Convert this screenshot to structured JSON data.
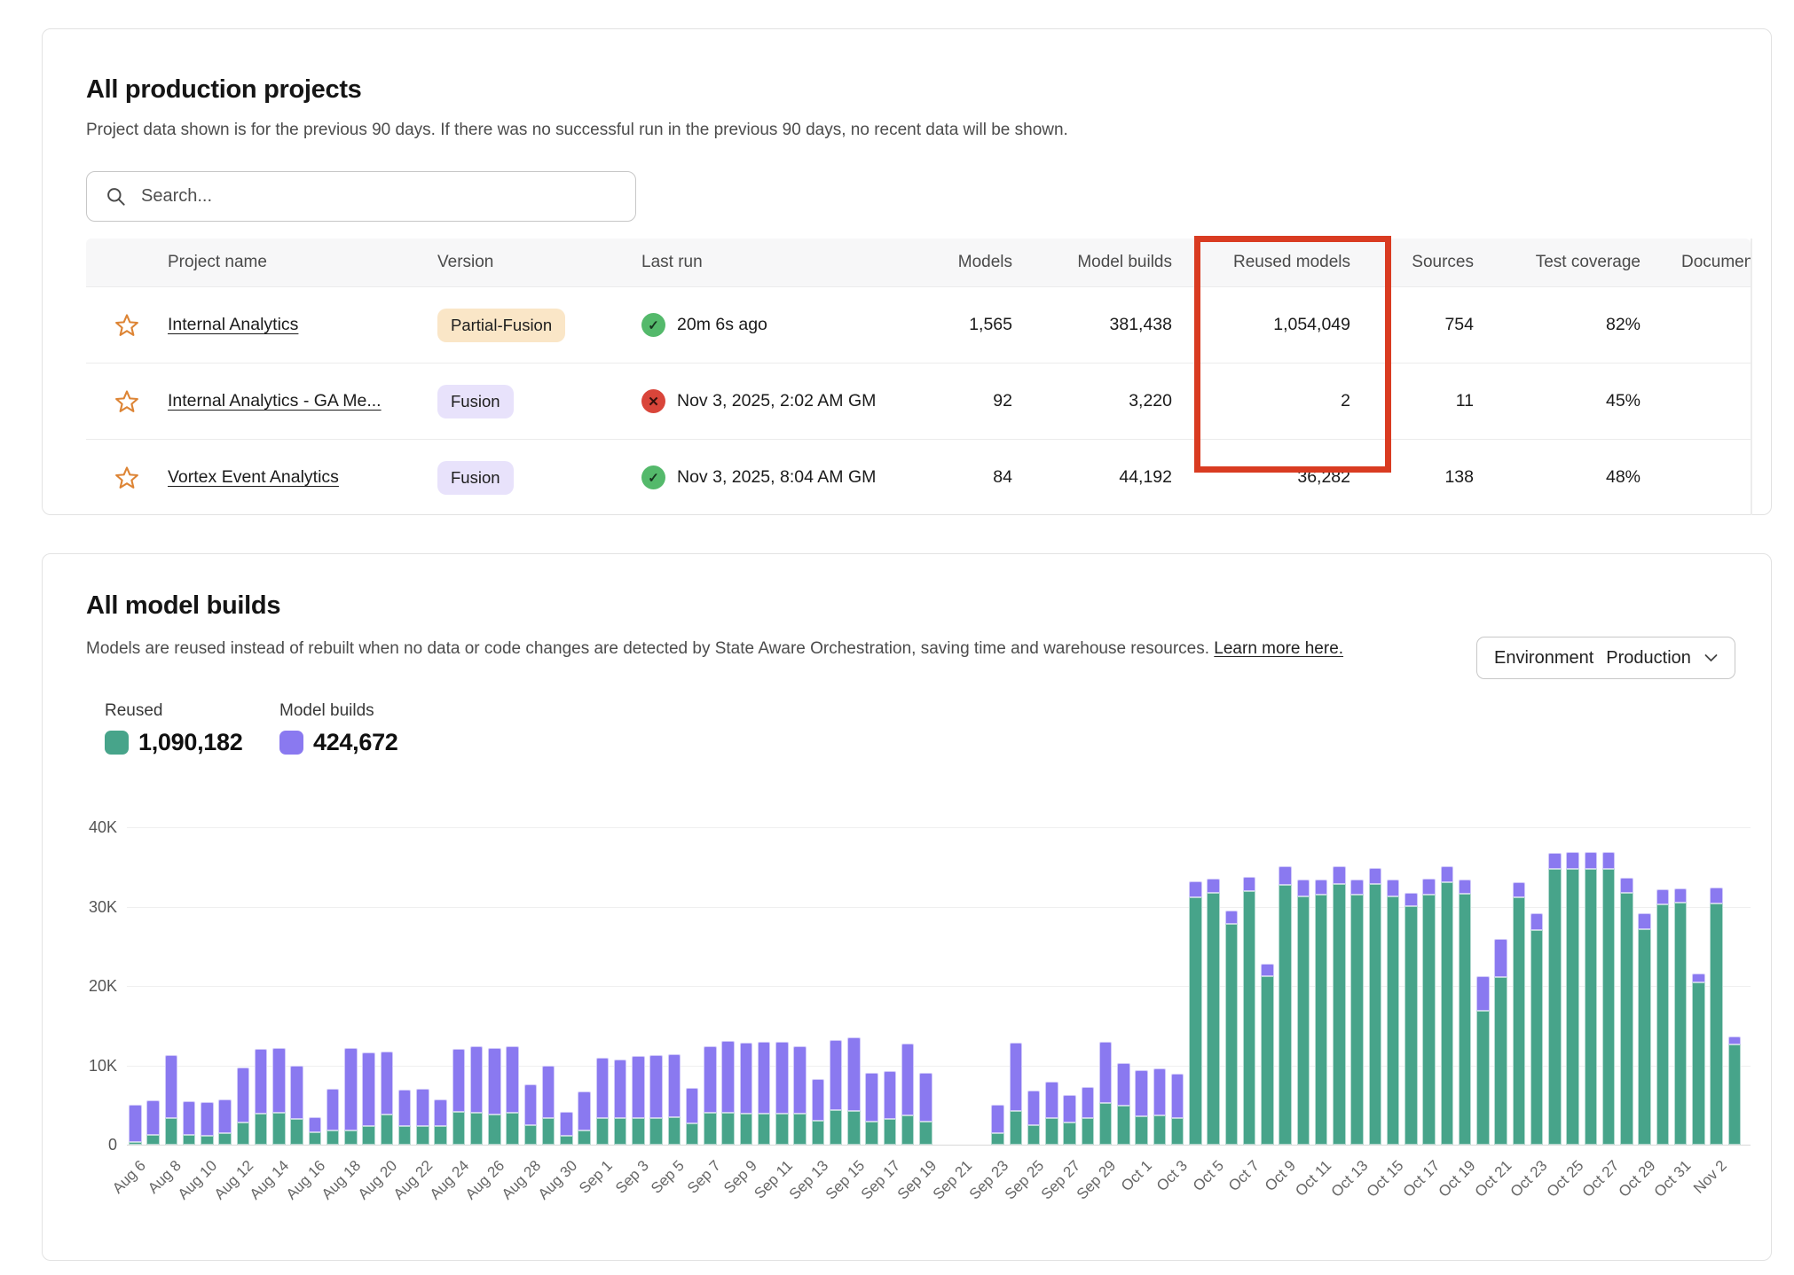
{
  "colors": {
    "reused_green": "#47a48a",
    "builds_purple": "#8a79f0",
    "highlight_red": "#d93b21",
    "star_orange": "#dd8434",
    "success_green": "#54b96b",
    "error_red": "#d9453a",
    "badge_peach": "#fae6c7",
    "badge_lavender": "#e8e2fb"
  },
  "icons": {
    "check_glyph": "✓",
    "x_glyph": "✕"
  },
  "projects_card": {
    "title": "All production projects",
    "subtitle": "Project data shown is for the previous 90 days. If there was no successful run in the previous 90 days, no recent data will be shown.",
    "search": {
      "placeholder": "Search..."
    },
    "table": {
      "columns": {
        "name": "Project name",
        "version": "Version",
        "last_run": "Last run",
        "models": "Models",
        "model_builds": "Model builds",
        "reused_models": "Reused models",
        "sources": "Sources",
        "test_coverage": "Test coverage",
        "documentation": "Documentation"
      },
      "rows": [
        {
          "name": "Internal Analytics",
          "version": "Partial-Fusion",
          "last_run": "20m 6s ago",
          "models": "1,565",
          "model_builds": "381,438",
          "reused_models": "1,054,049",
          "sources": "754",
          "test_coverage": "82%"
        },
        {
          "name": "Internal Analytics - GA Me...",
          "version": "Fusion",
          "last_run": "Nov 3, 2025, 2:02 AM GM",
          "models": "92",
          "model_builds": "3,220",
          "reused_models": "2",
          "sources": "11",
          "test_coverage": "45%"
        },
        {
          "name": "Vortex Event Analytics",
          "version": "Fusion",
          "last_run": "Nov 3, 2025, 8:04 AM GM",
          "models": "84",
          "model_builds": "44,192",
          "reused_models": "36,282",
          "sources": "138",
          "test_coverage": "48%"
        }
      ]
    }
  },
  "builds_card": {
    "title": "All model builds",
    "subtitle": "Models are reused instead of rebuilt when no data or code changes are detected by State Aware Orchestration, saving time and warehouse resources.",
    "learn_more": "Learn more here.",
    "environment_label": "Environment",
    "environment_value": "Production",
    "legend": [
      {
        "label": "Reused",
        "value": "1,090,182"
      },
      {
        "label": "Model builds",
        "value": "424,672"
      }
    ]
  },
  "chart_data": {
    "type": "bar",
    "stacked": true,
    "title": "All model builds",
    "xlabel": "",
    "ylabel": "",
    "ylim": [
      0,
      40000
    ],
    "yticks": [
      "0",
      "10K",
      "20K",
      "30K",
      "40K"
    ],
    "x_tick_every": 2,
    "grid": true,
    "legend_position": "top-left",
    "categories": [
      "Aug 6",
      "Aug 7",
      "Aug 8",
      "Aug 9",
      "Aug 10",
      "Aug 11",
      "Aug 12",
      "Aug 13",
      "Aug 14",
      "Aug 15",
      "Aug 16",
      "Aug 17",
      "Aug 18",
      "Aug 19",
      "Aug 20",
      "Aug 21",
      "Aug 22",
      "Aug 23",
      "Aug 24",
      "Aug 25",
      "Aug 26",
      "Aug 27",
      "Aug 28",
      "Aug 29",
      "Aug 30",
      "Aug 31",
      "Sep 1",
      "Sep 2",
      "Sep 3",
      "Sep 4",
      "Sep 5",
      "Sep 6",
      "Sep 7",
      "Sep 8",
      "Sep 9",
      "Sep 10",
      "Sep 11",
      "Sep 12",
      "Sep 13",
      "Sep 14",
      "Sep 15",
      "Sep 16",
      "Sep 17",
      "Sep 18",
      "Sep 19",
      "Sep 20",
      "Sep 21",
      "Sep 22",
      "Sep 23",
      "Sep 24",
      "Sep 25",
      "Sep 26",
      "Sep 27",
      "Sep 28",
      "Sep 29",
      "Sep 30",
      "Oct 1",
      "Oct 2",
      "Oct 3",
      "Oct 4",
      "Oct 5",
      "Oct 6",
      "Oct 7",
      "Oct 8",
      "Oct 9",
      "Oct 10",
      "Oct 11",
      "Oct 12",
      "Oct 13",
      "Oct 14",
      "Oct 15",
      "Oct 16",
      "Oct 17",
      "Oct 18",
      "Oct 19",
      "Oct 20",
      "Oct 21",
      "Oct 22",
      "Oct 23",
      "Oct 24",
      "Oct 25",
      "Oct 26",
      "Oct 27",
      "Oct 28",
      "Oct 29",
      "Oct 30",
      "Oct 31",
      "Nov 1",
      "Nov 2",
      "Nov 3"
    ],
    "series": [
      {
        "name": "Reused",
        "total": 1090182,
        "values": [
          300,
          1200,
          3300,
          1200,
          1100,
          1500,
          2800,
          3900,
          4000,
          3200,
          1600,
          1800,
          1800,
          2300,
          3800,
          2300,
          2300,
          2300,
          4100,
          4000,
          3800,
          4000,
          2500,
          3300,
          1100,
          1800,
          3400,
          3400,
          3300,
          3300,
          3500,
          2700,
          4000,
          4000,
          3900,
          3900,
          3900,
          3900,
          3000,
          4400,
          4200,
          2900,
          3200,
          3700,
          2900,
          0,
          0,
          0,
          1400,
          4200,
          2500,
          3400,
          2800,
          3300,
          5300,
          4900,
          3600,
          3700,
          3300,
          31200,
          31700,
          27800,
          32000,
          21200,
          32700,
          31300,
          31500,
          32800,
          31500,
          32800,
          31300,
          30100,
          31500,
          33100,
          31600,
          16900,
          21100,
          31200,
          27000,
          34700,
          34800,
          34700,
          34700,
          31700,
          27200,
          30300,
          30500,
          20400,
          30400,
          12600
        ]
      },
      {
        "name": "Model builds",
        "total": 424672,
        "values": [
          4700,
          4400,
          7900,
          4200,
          4300,
          4200,
          6900,
          8200,
          8200,
          6700,
          1900,
          5300,
          10400,
          9300,
          7900,
          4600,
          4700,
          3300,
          7900,
          8400,
          8400,
          8400,
          5100,
          6600,
          3000,
          4900,
          7600,
          7400,
          7800,
          7900,
          7900,
          4500,
          8400,
          9000,
          8900,
          9100,
          9100,
          8500,
          5200,
          8800,
          9300,
          6100,
          6000,
          9000,
          6100,
          0,
          0,
          0,
          3600,
          8600,
          4400,
          4600,
          3500,
          3900,
          7700,
          5400,
          5800,
          5900,
          5600,
          2000,
          1800,
          1700,
          1800,
          1600,
          2400,
          2100,
          1900,
          2200,
          1900,
          2000,
          2100,
          1700,
          2000,
          2000,
          1800,
          4400,
          4800,
          1900,
          2100,
          2000,
          2100,
          2100,
          2100,
          1900,
          2000,
          1900,
          1800,
          1100,
          2000,
          1000
        ]
      }
    ]
  }
}
